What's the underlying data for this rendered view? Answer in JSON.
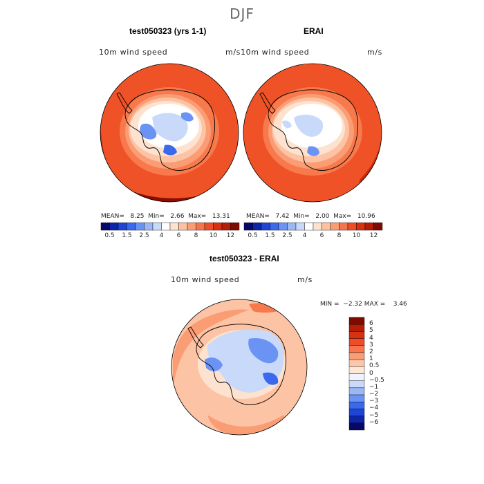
{
  "figure": {
    "season": "DJF"
  },
  "panels": {
    "model": {
      "title": "test050323 (yrs 1-1)",
      "variable": "10m wind speed",
      "units": "m/s",
      "stats": {
        "mean_label": "MEAN=",
        "mean": "8.25",
        "min_label": "Min=",
        "min": "2.66",
        "max_label": "Max=",
        "max": "13.31"
      }
    },
    "obs": {
      "title": "ERAI",
      "variable": "10m wind speed",
      "units": "m/s",
      "stats": {
        "mean_label": "MEAN=",
        "mean": "7.42",
        "min_label": "Min=",
        "min": "2.00",
        "max_label": "Max=",
        "max": "10.96"
      }
    },
    "diff": {
      "title": "test050323 - ERAI",
      "variable": "10m wind speed",
      "units": "m/s",
      "stats": {
        "min_label": "MIN =",
        "min": "−2.32",
        "max_label": "MAX =",
        "max": "3.46"
      }
    }
  },
  "colorbar_abs": {
    "colors": [
      "#08086b",
      "#0d25a8",
      "#1f45d6",
      "#3a69ee",
      "#6b93f3",
      "#9bb7f6",
      "#c8d9fa",
      "#ffffff",
      "#fde3cf",
      "#fcc2a1",
      "#fb9d74",
      "#f6754c",
      "#ee4d27",
      "#d9300f",
      "#b51d06",
      "#800a00"
    ],
    "ticks": [
      "0.5",
      "1.5",
      "2.5",
      "4",
      "6",
      "8",
      "10",
      "12"
    ]
  },
  "colorbar_diff": {
    "colors": [
      "#08086b",
      "#0d25a8",
      "#1f45d6",
      "#3a69ee",
      "#6b93f3",
      "#9bb7f6",
      "#c8d9fa",
      "#eef3fd",
      "#fde7d6",
      "#fcc6aa",
      "#fb9d74",
      "#f6754c",
      "#ee4d27",
      "#d9300f",
      "#b51d06",
      "#800a00"
    ],
    "ticks": [
      "6",
      "5",
      "4",
      "3",
      "2",
      "1",
      "0.5",
      "0",
      "−0.5",
      "−1",
      "−2",
      "−3",
      "−4",
      "−5",
      "−6"
    ]
  },
  "map_colors": {
    "deep_red": "#8a0d02",
    "red": "#c62a0b",
    "orange_red": "#ef5226",
    "orange": "#f7794c",
    "salmon": "#fa9c74",
    "light_salmon": "#fcc3a4",
    "peach": "#fde3cf",
    "white": "#ffffff",
    "light_blue": "#c8d9fa",
    "blue": "#6b93f3",
    "mid_blue": "#3a69ee"
  }
}
